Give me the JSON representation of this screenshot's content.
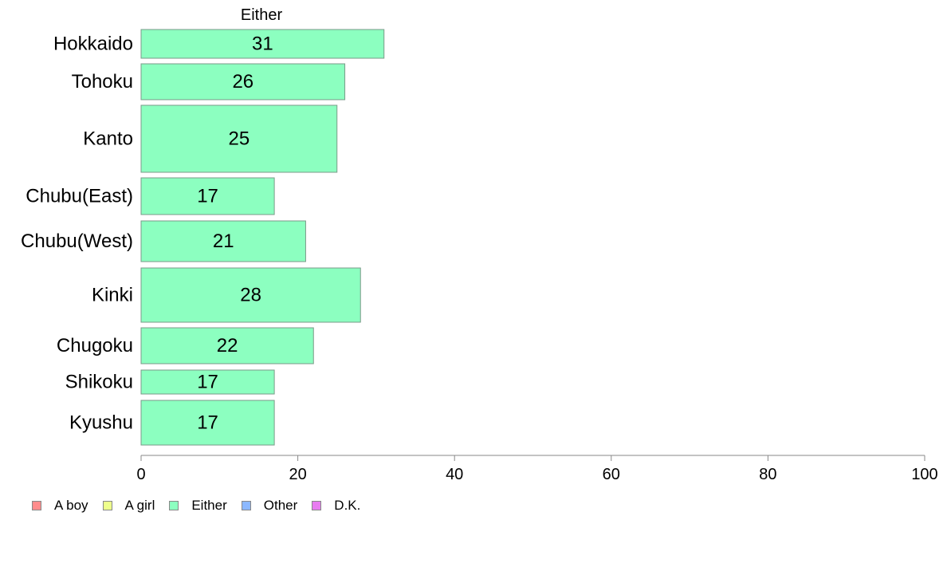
{
  "chart_data": {
    "type": "bar",
    "orientation": "horizontal",
    "title": "Either",
    "categories": [
      "Hokkaido",
      "Tohoku",
      "Kanto",
      "Chubu(East)",
      "Chubu(West)",
      "Kinki",
      "Chugoku",
      "Shikoku",
      "Kyushu"
    ],
    "series": [
      {
        "name": "Either",
        "values": [
          31,
          26,
          25,
          17,
          21,
          28,
          22,
          17,
          17
        ],
        "color": "#8cffc0"
      }
    ],
    "xlim": [
      0,
      100
    ],
    "xticks": [
      0,
      20,
      40,
      60,
      80,
      100
    ],
    "grid": false,
    "legend_position": "bottom-left",
    "legend": [
      {
        "label": "A boy",
        "color": "#ff8c8c"
      },
      {
        "label": "A girl",
        "color": "#eeff8c"
      },
      {
        "label": "Either",
        "color": "#8cffc0"
      },
      {
        "label": "Other",
        "color": "#8cb8ff"
      },
      {
        "label": "D.K.",
        "color": "#e87cf0"
      }
    ]
  }
}
